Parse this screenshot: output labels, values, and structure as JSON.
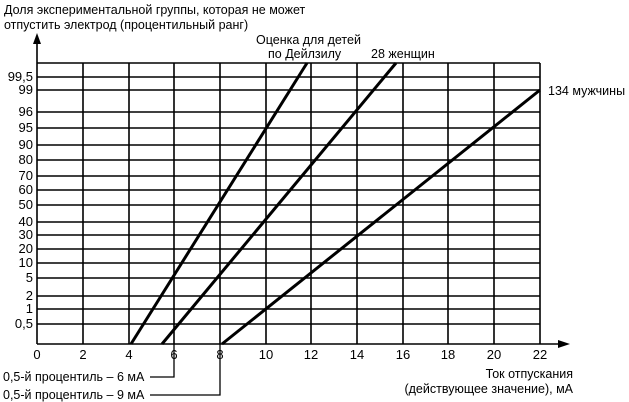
{
  "chart_data": {
    "type": "line",
    "title": "",
    "ylabel": "Доля экспериментальной группы, которая не может отпустить электрод (процентильный ранг)",
    "ylabel_lines": [
      "Доля экспериментальной группы, которая не может",
      "отпустить электрод (процентильный ранг)"
    ],
    "xlabel": "Ток отпускания (действующее значение), мА",
    "xlabel_lines": [
      "Ток отпускания",
      "(действующее значение), мА"
    ],
    "x_ticks": [
      0,
      2,
      4,
      6,
      8,
      10,
      12,
      14,
      16,
      18,
      20,
      22
    ],
    "y_ticks": [
      "0,5",
      "1",
      "2",
      "5",
      "10",
      "20",
      "30",
      "40",
      "50",
      "60",
      "70",
      "80",
      "90",
      "95",
      "96",
      "99",
      "99,5"
    ],
    "xlim": [
      0,
      22
    ],
    "y_scale": "probability",
    "grid": true,
    "series": [
      {
        "name": "Оценка для детей по Дейлзилу",
        "label_lines": [
          "Оценка для детей",
          "по Дейлзилу"
        ],
        "points": [
          [
            4.1,
            0.1
          ],
          [
            11.7,
            99.9
          ]
        ]
      },
      {
        "name": "28 женщин",
        "points": [
          [
            5.5,
            0.1
          ],
          [
            15.7,
            99.9
          ]
        ]
      },
      {
        "name": "134 мужчины",
        "points": [
          [
            8.1,
            0.1
          ],
          [
            22,
            99
          ]
        ]
      }
    ],
    "annotations": [
      {
        "text": "0,5-й процентиль – 6 мА",
        "x": 6
      },
      {
        "text": "0,5-й процентиль – 9 мА",
        "x": 8
      }
    ]
  }
}
